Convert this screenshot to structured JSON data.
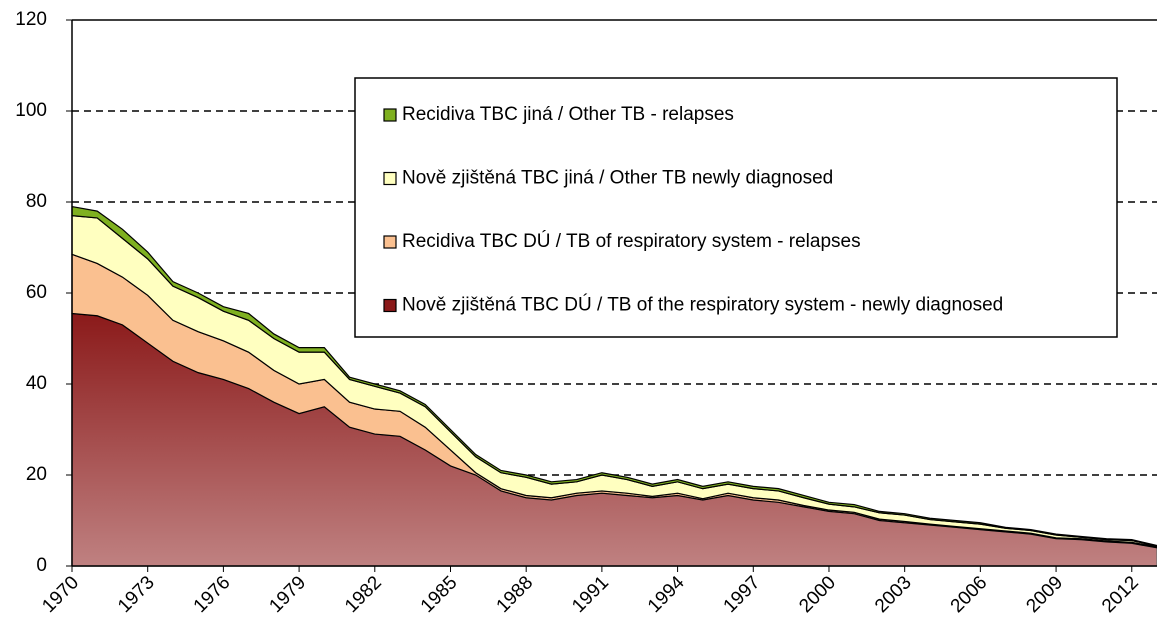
{
  "chart_data": {
    "type": "stacked_area",
    "x": [
      1970,
      1971,
      1972,
      1973,
      1974,
      1975,
      1976,
      1977,
      1978,
      1979,
      1980,
      1981,
      1982,
      1983,
      1984,
      1985,
      1986,
      1987,
      1988,
      1989,
      1990,
      1991,
      1992,
      1993,
      1994,
      1995,
      1996,
      1997,
      1998,
      1999,
      2000,
      2001,
      2002,
      2003,
      2004,
      2005,
      2006,
      2007,
      2008,
      2009,
      2010,
      2011,
      2012,
      2013
    ],
    "xlim": [
      1970,
      2013
    ],
    "xticks": [
      1970,
      1973,
      1976,
      1979,
      1982,
      1985,
      1988,
      1991,
      1994,
      1997,
      2000,
      2003,
      2006,
      2009,
      2012
    ],
    "ylim": [
      0,
      120
    ],
    "yticks": [
      0,
      20,
      40,
      60,
      80,
      100,
      120
    ],
    "grid": true,
    "series": [
      {
        "name": "Nově zjištěná TBC DÚ / TB of the respiratory system - newly diagnosed",
        "color": "#8b1a1a",
        "values": [
          55.5,
          55,
          53,
          49,
          45,
          42.5,
          41,
          39,
          36,
          33.5,
          35,
          30.5,
          29,
          28.5,
          25.5,
          22,
          20,
          16.5,
          15,
          14.5,
          15.5,
          16,
          15.5,
          15,
          15.5,
          14.5,
          15.5,
          14.5,
          14,
          13,
          12,
          11.5,
          10,
          9.5,
          9,
          8.5,
          8,
          7.5,
          7,
          6,
          5.8,
          5.3,
          5,
          4
        ]
      },
      {
        "name": "Recidiva TBC DÚ / TB of respiratory system - relapses",
        "color": "#fac090",
        "values": [
          13,
          11.5,
          10.5,
          10.5,
          9,
          9,
          8.5,
          8,
          7,
          6.5,
          6,
          5.5,
          5.5,
          5.5,
          5,
          3.5,
          0.5,
          0.5,
          0.5,
          0.5,
          0.5,
          0.5,
          0.5,
          0.3,
          0.5,
          0.3,
          0.5,
          0.5,
          0.5,
          0.3,
          0.3,
          0.3,
          0.3,
          0.3,
          0.2,
          0.2,
          0.2,
          0.2,
          0.2,
          0.2,
          0.2,
          0.2,
          0.2,
          0.2
        ]
      },
      {
        "name": "Nově zjištěná TBC jiná / Other TB newly diagnosed",
        "color": "#ffffc0",
        "values": [
          8.5,
          10,
          8.5,
          8,
          7.5,
          7.5,
          6.5,
          7,
          7,
          7,
          6,
          5,
          5,
          4,
          4.5,
          4,
          3.5,
          3.5,
          4,
          3,
          2.5,
          3.5,
          3,
          2.2,
          2.5,
          2.2,
          2,
          2,
          2,
          1.7,
          1.3,
          1.2,
          1.4,
          1.4,
          1,
          1,
          1,
          0.6,
          0.6,
          0.6,
          0.3,
          0.3,
          0.4,
          0.2
        ]
      },
      {
        "name": "Recidiva TBC jiná / Other TB - relapses",
        "color": "#7fb020",
        "values": [
          2,
          1.5,
          2,
          1.5,
          1,
          1,
          1,
          1.5,
          1,
          1,
          1,
          0.5,
          0.5,
          0.5,
          0.5,
          0.5,
          0.5,
          0.5,
          0.5,
          0.5,
          0.5,
          0.5,
          0.5,
          0.5,
          0.5,
          0.5,
          0.5,
          0.5,
          0.5,
          0.5,
          0.4,
          0.5,
          0.3,
          0.3,
          0.3,
          0.3,
          0.3,
          0.2,
          0.2,
          0.2,
          0.2,
          0.2,
          0.2,
          0.1
        ]
      }
    ]
  }
}
